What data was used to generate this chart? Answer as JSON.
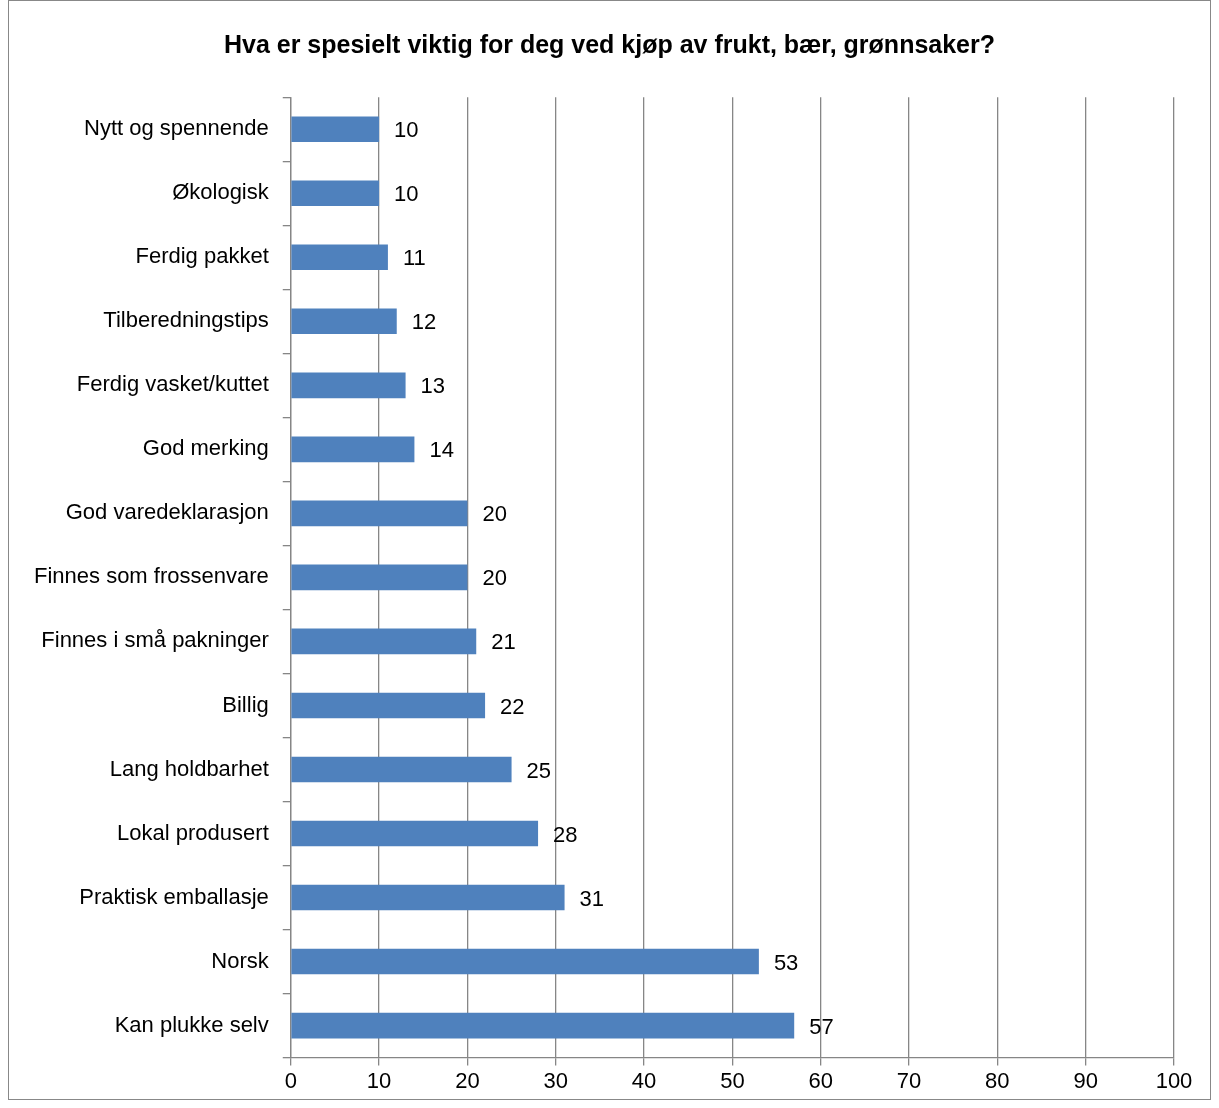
{
  "chart_data": {
    "type": "bar",
    "orientation": "horizontal",
    "title": "Hva er spesielt viktig for deg ved kjøp av frukt, bær, grønnsaker?",
    "categories": [
      "Nytt og spennende",
      "Økologisk",
      "Ferdig pakket",
      "Tilberedningstips",
      "Ferdig vasket/kuttet",
      "God merking",
      "God varedeklarasjon",
      "Finnes som frossenvare",
      "Finnes i små pakninger",
      "Billig",
      "Lang holdbarhet",
      "Lokal produsert",
      "Praktisk emballasje",
      "Norsk",
      "Kan plukke selv"
    ],
    "values": [
      10,
      10,
      11,
      12,
      13,
      14,
      20,
      20,
      21,
      22,
      25,
      28,
      31,
      53,
      57
    ],
    "color": "#4f81bd",
    "xlim": [
      0,
      100
    ],
    "xticks": [
      0,
      10,
      20,
      30,
      40,
      50,
      60,
      70,
      80,
      90,
      100
    ],
    "grid": "x",
    "data_labels": true,
    "legend": false
  }
}
